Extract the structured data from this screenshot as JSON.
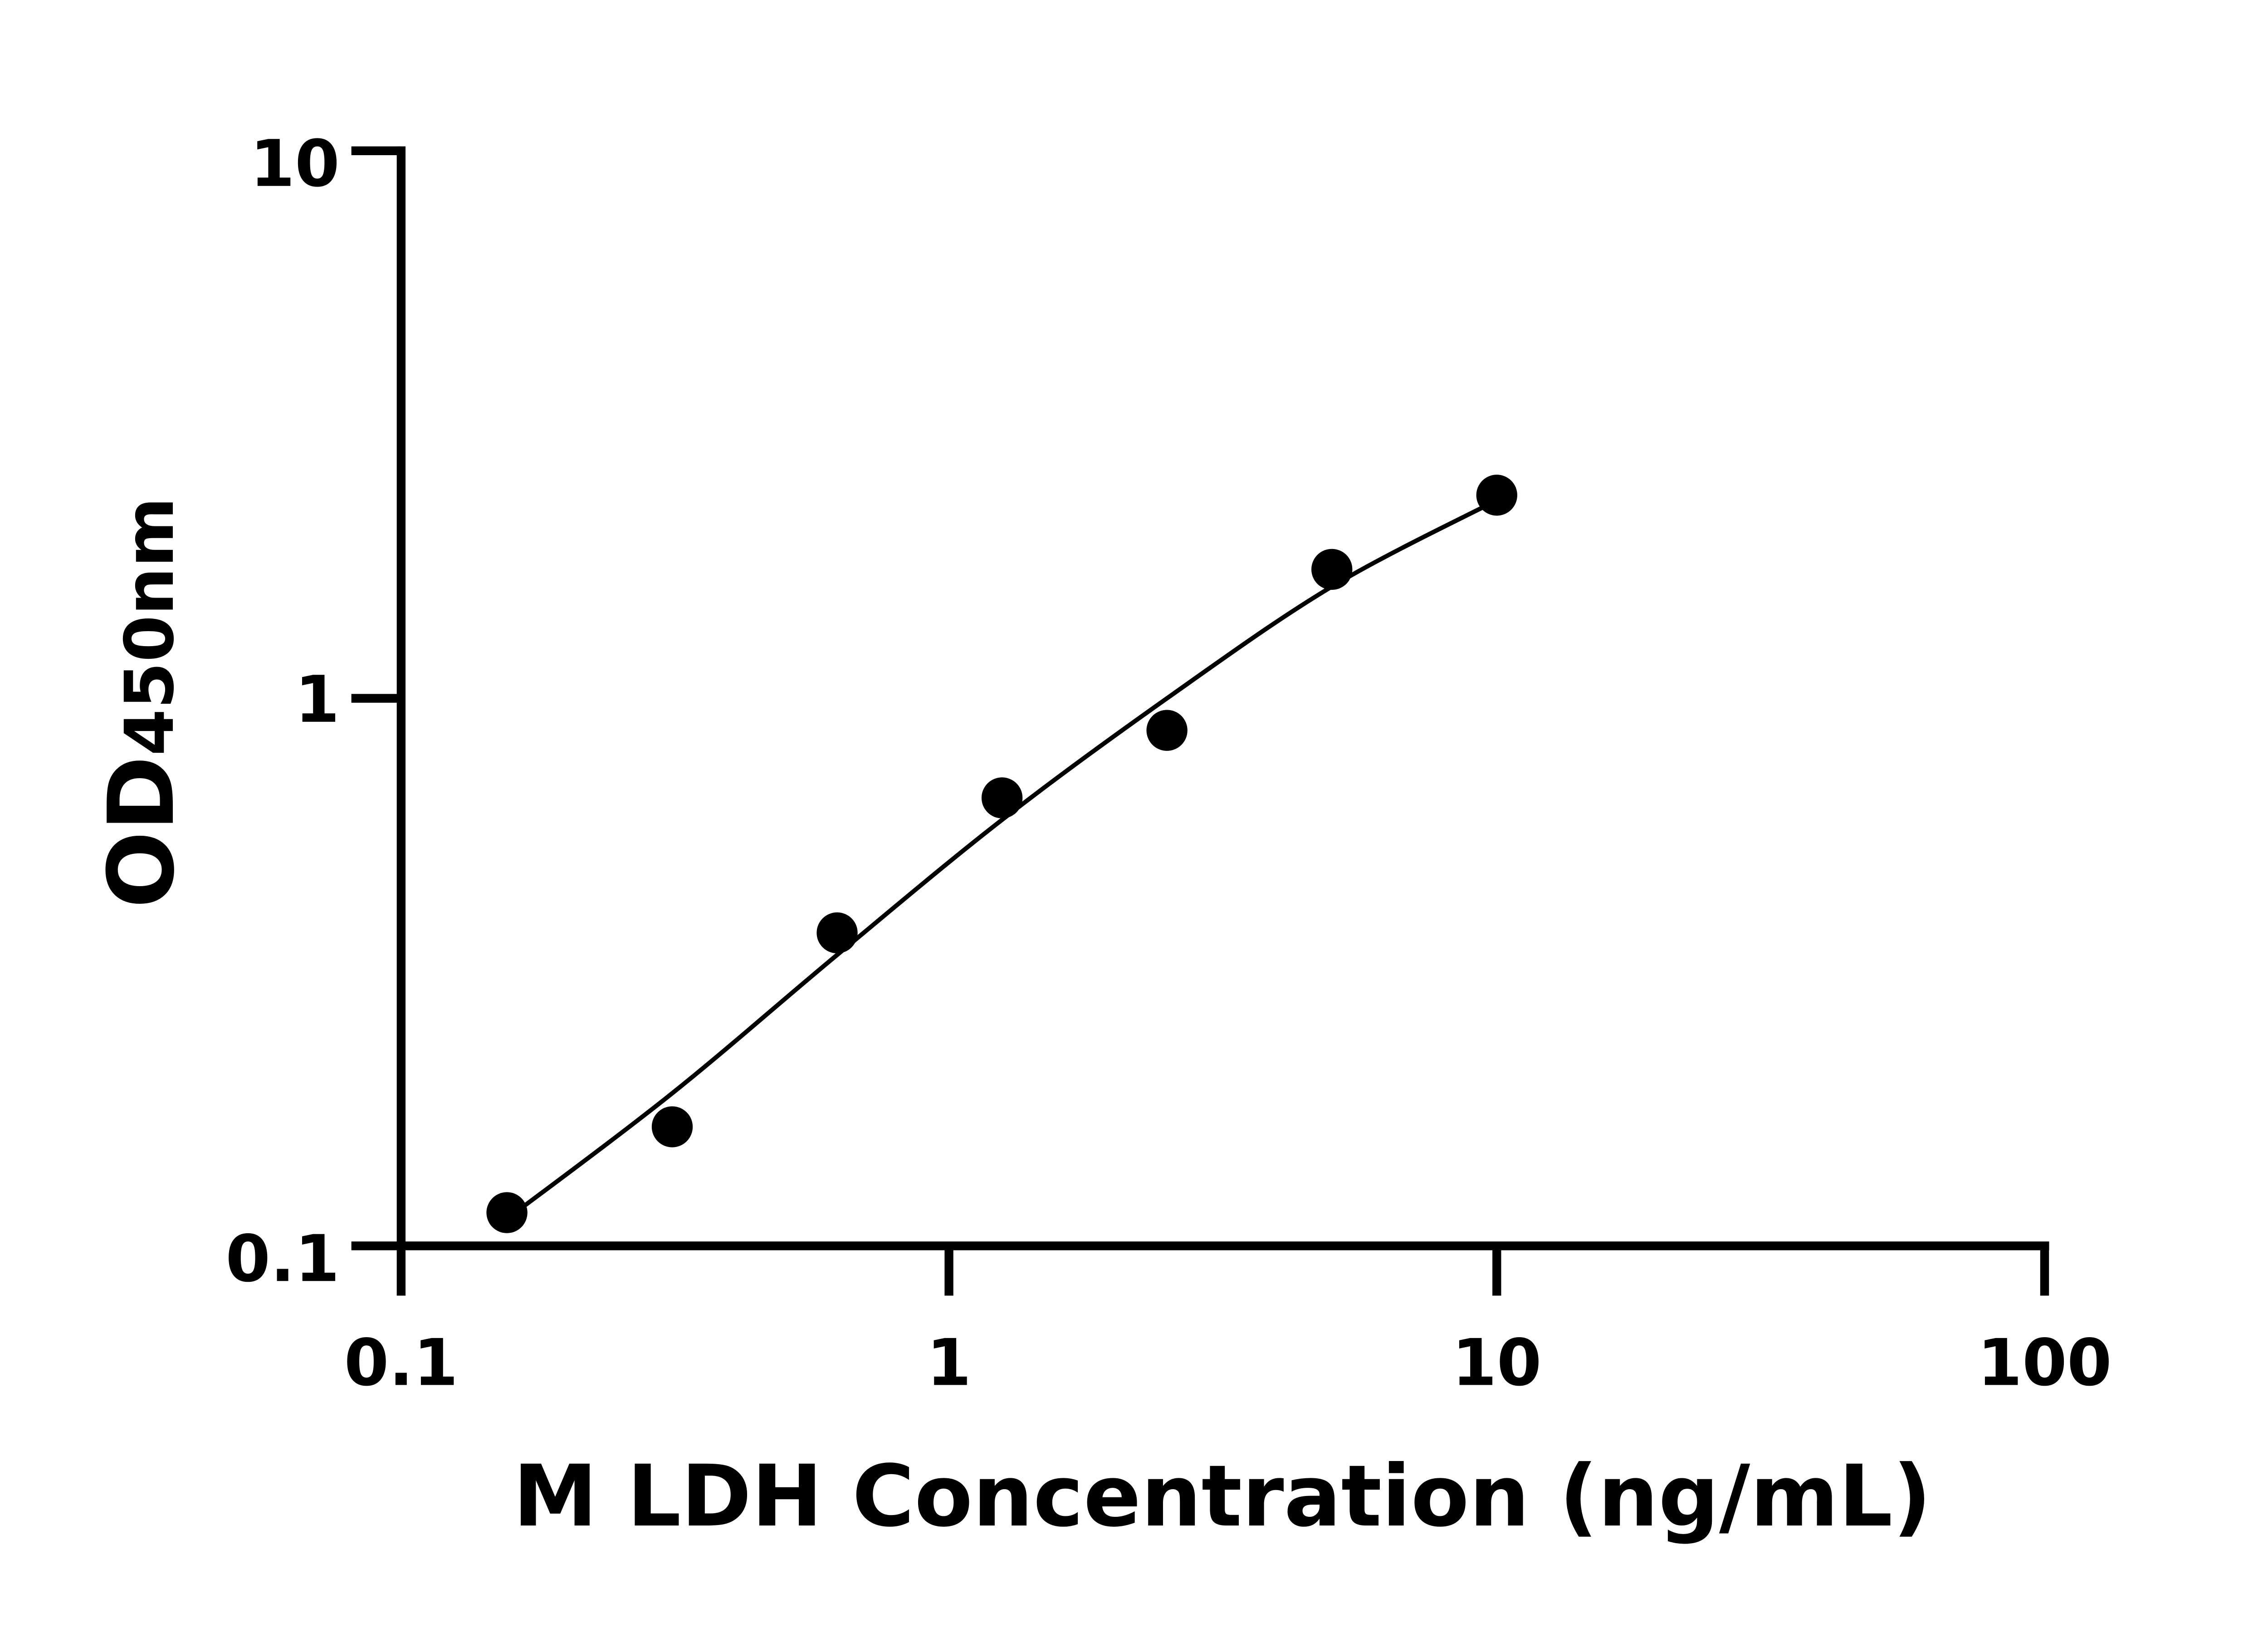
{
  "chart_data": {
    "type": "scatter",
    "xlabel": "M LDH Concentration (ng/mL)",
    "ylabel_main": "OD",
    "ylabel_sub": "450nm",
    "xscale": "log",
    "yscale": "log",
    "xlim": [
      0.1,
      100
    ],
    "ylim": [
      0.1,
      10
    ],
    "xticks": [
      "0.1",
      "1",
      "10",
      "100"
    ],
    "yticks": [
      "0.1",
      "1",
      "10"
    ],
    "grid": false,
    "series": [
      {
        "x": [
          0.156,
          0.3125,
          0.625,
          1.25,
          2.5,
          5,
          10
        ],
        "y": [
          0.115,
          0.165,
          0.373,
          0.658,
          0.874,
          1.72,
          2.35
        ],
        "marker": "circle",
        "color": "#000000"
      }
    ],
    "fit_curve": {
      "x": [
        0.156,
        0.3125,
        0.625,
        1.25,
        2.5,
        5,
        10
      ],
      "y": [
        0.112,
        0.19,
        0.34,
        0.6,
        1.0,
        1.6,
        2.3
      ],
      "color": "#000000"
    }
  }
}
